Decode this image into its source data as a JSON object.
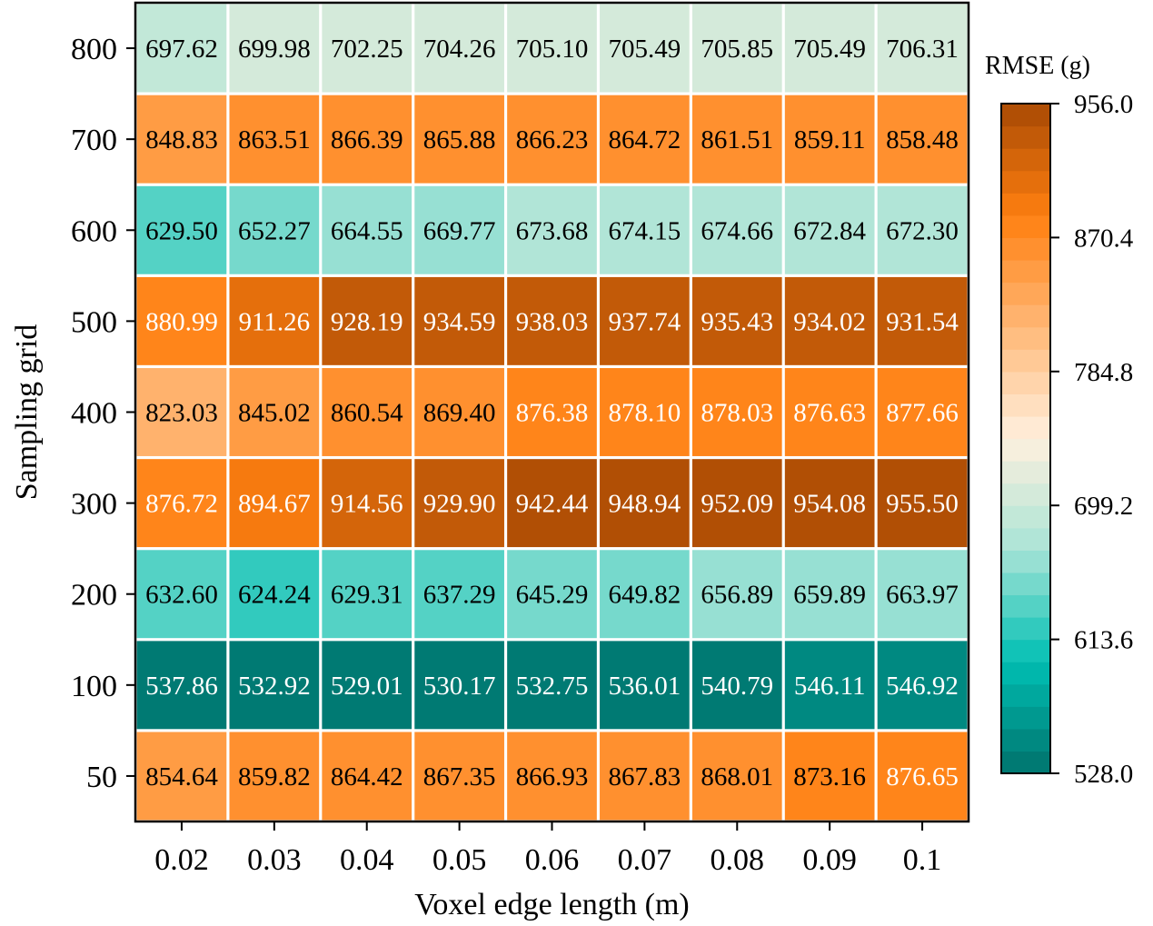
{
  "chart_data": {
    "type": "heatmap",
    "xlabel": "Voxel edge length (m)",
    "ylabel": "Sampling grid",
    "x_categories": [
      "0.02",
      "0.03",
      "0.04",
      "0.05",
      "0.06",
      "0.07",
      "0.08",
      "0.09",
      "0.1"
    ],
    "y_categories": [
      "800",
      "700",
      "600",
      "500",
      "400",
      "300",
      "200",
      "100",
      "50"
    ],
    "values": [
      [
        697.62,
        699.98,
        702.25,
        704.26,
        705.1,
        705.49,
        705.85,
        705.49,
        706.31
      ],
      [
        848.83,
        863.51,
        866.39,
        865.88,
        866.23,
        864.72,
        861.51,
        859.11,
        858.48
      ],
      [
        629.5,
        652.27,
        664.55,
        669.77,
        673.68,
        674.15,
        674.66,
        672.84,
        672.3
      ],
      [
        880.99,
        911.26,
        928.19,
        934.59,
        938.03,
        937.74,
        935.43,
        934.02,
        931.54
      ],
      [
        823.03,
        845.02,
        860.54,
        869.4,
        876.38,
        878.1,
        878.03,
        876.63,
        877.66
      ],
      [
        876.72,
        894.67,
        914.56,
        929.9,
        942.44,
        948.94,
        952.09,
        954.08,
        955.5
      ],
      [
        632.6,
        624.24,
        629.31,
        637.29,
        645.29,
        649.82,
        656.89,
        659.89,
        663.97
      ],
      [
        537.86,
        532.92,
        529.01,
        530.17,
        532.75,
        536.01,
        540.79,
        546.11,
        546.92
      ],
      [
        854.64,
        859.82,
        864.42,
        867.35,
        866.93,
        867.83,
        868.01,
        873.16,
        876.65
      ]
    ],
    "value_labels": [
      [
        "697.62",
        "699.98",
        "702.25",
        "704.26",
        "705.10",
        "705.49",
        "705.85",
        "705.49",
        "706.31"
      ],
      [
        "848.83",
        "863.51",
        "866.39",
        "865.88",
        "866.23",
        "864.72",
        "861.51",
        "859.11",
        "858.48"
      ],
      [
        "629.50",
        "652.27",
        "664.55",
        "669.77",
        "673.68",
        "674.15",
        "674.66",
        "672.84",
        "672.30"
      ],
      [
        "880.99",
        "911.26",
        "928.19",
        "934.59",
        "938.03",
        "937.74",
        "935.43",
        "934.02",
        "931.54"
      ],
      [
        "823.03",
        "845.02",
        "860.54",
        "869.40",
        "876.38",
        "878.10",
        "878.03",
        "876.63",
        "877.66"
      ],
      [
        "876.72",
        "894.67",
        "914.56",
        "929.90",
        "942.44",
        "948.94",
        "952.09",
        "954.08",
        "955.50"
      ],
      [
        "632.60",
        "624.24",
        "629.31",
        "637.29",
        "645.29",
        "649.82",
        "656.89",
        "659.89",
        "663.97"
      ],
      [
        "537.86",
        "532.92",
        "529.01",
        "530.17",
        "532.75",
        "536.01",
        "540.79",
        "546.11",
        "546.92"
      ],
      [
        "854.64",
        "859.82",
        "864.42",
        "867.35",
        "866.93",
        "867.83",
        "868.01",
        "873.16",
        "876.65"
      ]
    ],
    "colorbar": {
      "title": "RMSE (g)",
      "min": 528.0,
      "max": 956.0,
      "ticks": [
        528.0,
        613.6,
        699.2,
        784.8,
        870.4,
        956.0
      ],
      "tick_labels": [
        "528.0",
        "613.6",
        "699.2",
        "784.8",
        "870.4",
        "956.0"
      ],
      "levels": 30,
      "color_stops": [
        "#00726c",
        "#00bfb3",
        "#a8e4d6",
        "#fff0de",
        "#ffb877",
        "#ff7f10",
        "#a84a04"
      ]
    },
    "light_text_color": "#ffffff",
    "dark_text_color": "#000000",
    "light_text_threshold_high": 875.0,
    "light_text_threshold_low": 560.0,
    "cell_separator_color": "#ffffff"
  }
}
